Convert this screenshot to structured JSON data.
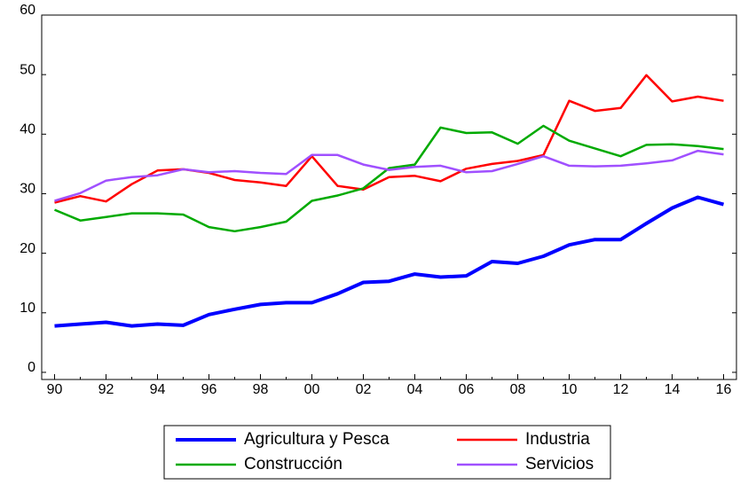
{
  "chart_data": {
    "type": "line",
    "categories": [
      "90",
      null,
      "92",
      null,
      "94",
      null,
      "96",
      null,
      "98",
      null,
      "00",
      null,
      "02",
      null,
      "04",
      null,
      "06",
      null,
      "08",
      null,
      "10",
      null,
      "12",
      null,
      "14",
      null,
      "16"
    ],
    "series": [
      {
        "name": "Agricultura y Pesca",
        "color": "#0000ff",
        "values": [
          7.8,
          8.1,
          8.4,
          7.8,
          8.1,
          7.9,
          9.7,
          10.6,
          11.4,
          11.7,
          11.7,
          13.2,
          15.1,
          15.3,
          16.5,
          16.0,
          16.2,
          18.6,
          18.3,
          19.5,
          21.4,
          22.3,
          22.3,
          25.0,
          27.6,
          29.4,
          28.2
        ]
      },
      {
        "name": "Industria",
        "color": "#ff0000",
        "values": [
          28.5,
          29.6,
          28.7,
          31.6,
          33.9,
          34.1,
          33.5,
          32.3,
          31.9,
          31.3,
          36.3,
          31.3,
          30.7,
          32.8,
          33.0,
          32.1,
          34.2,
          35.0,
          35.5,
          36.5,
          45.6,
          43.9,
          44.4,
          49.9,
          45.5,
          46.3,
          45.6
        ]
      },
      {
        "name": "Construcción",
        "color": "#00aa00",
        "values": [
          27.3,
          25.5,
          26.1,
          26.7,
          26.7,
          26.5,
          24.4,
          23.7,
          24.4,
          25.3,
          28.8,
          29.7,
          30.9,
          34.3,
          34.9,
          41.1,
          40.2,
          40.3,
          38.4,
          41.4,
          38.9,
          37.6,
          36.3,
          38.2,
          38.3,
          38.0,
          37.5
        ]
      },
      {
        "name": "Servicios",
        "color": "#a050ff",
        "values": [
          28.8,
          30.1,
          32.2,
          32.8,
          33.1,
          34.1,
          33.6,
          33.8,
          33.5,
          33.3,
          36.5,
          36.5,
          34.9,
          34.0,
          34.5,
          34.7,
          33.6,
          33.8,
          35.0,
          36.3,
          34.7,
          34.6,
          34.7,
          35.1,
          35.6,
          37.2,
          36.6
        ]
      }
    ],
    "ylim": [
      -1.2,
      60
    ],
    "yticks": [
      0,
      10,
      20,
      30,
      40,
      50,
      60
    ],
    "grid": false,
    "legend": "bottom"
  }
}
